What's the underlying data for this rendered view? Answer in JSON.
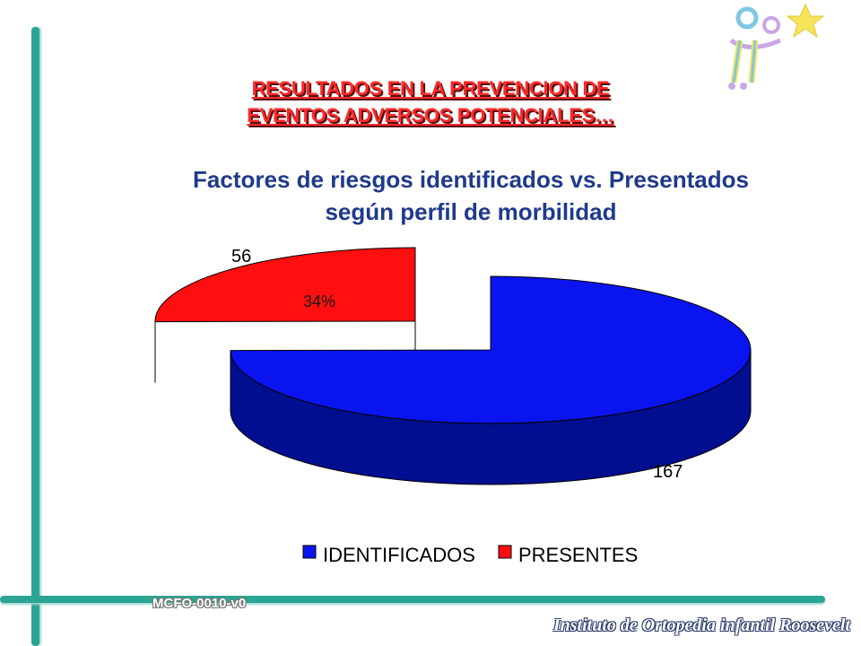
{
  "heading": {
    "line1": "RESULTADOS  EN LA PREVENCION DE",
    "line2": "EVENTOS ADVERSOS POTENCIALES…"
  },
  "footer": {
    "code": "MCFO-0010-v0",
    "institute": "Instituto de Ortopedia infantil Roosevelt"
  },
  "logo": {
    "name": "stick-figure-star-logo",
    "colors": [
      "#7ec8e3",
      "#f7e45a",
      "#c9a6e8"
    ]
  },
  "chart_data": {
    "type": "pie",
    "title_line1": "Factores de riesgos identificados vs. Presentados",
    "title_line2": "según perfil de morbilidad",
    "categories": [
      "IDENTIFICADOS",
      "PRESENTES"
    ],
    "values": [
      167,
      56
    ],
    "value_labels": [
      "167",
      "56"
    ],
    "percent_labels": [
      "",
      "34%"
    ],
    "colors": [
      "#0a14ee",
      "#ff0f0f"
    ],
    "side_colors": [
      "#000e8f",
      "#7a0505"
    ],
    "legend": {
      "position": "bottom",
      "entries": [
        "IDENTIFICADOS",
        "PRESENTES"
      ]
    }
  }
}
